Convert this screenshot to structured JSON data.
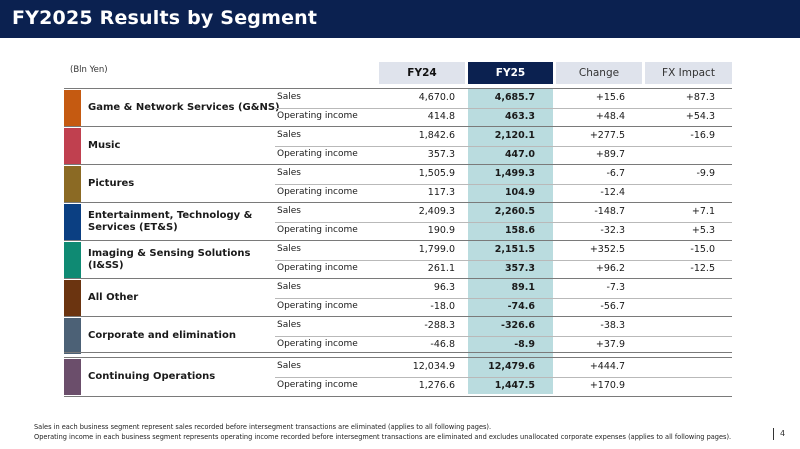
{
  "title": "FY2025 Results by Segment",
  "unit": "(Bln Yen)",
  "columns": {
    "fy24": "FY24",
    "fy25": "FY25",
    "change": "Change",
    "fx": "FX Impact"
  },
  "colors": {
    "header_bg": "#0b2150",
    "fy25_band": "#badcdf",
    "gns": "#c55a11",
    "music": "#c0404f",
    "pictures": "#8b6a24",
    "ets": "#0b3f82",
    "iss": "#0f8a73",
    "other": "#6b3410",
    "corp": "#4c6176",
    "cont": "#6b4e6b"
  },
  "segments": [
    {
      "name": "Game & Network Services (G&NS)",
      "sales": {
        "label": "Sales",
        "fy24": "4,670.0",
        "fy25": "4,685.7",
        "change": "+15.6",
        "fx": "+87.3"
      },
      "oi": {
        "label": "Operating income",
        "fy24": "414.8",
        "fy25": "463.3",
        "change": "+48.4",
        "fx": "+54.3"
      }
    },
    {
      "name": "Music",
      "sales": {
        "label": "Sales",
        "fy24": "1,842.6",
        "fy25": "2,120.1",
        "change": "+277.5",
        "fx": "-16.9"
      },
      "oi": {
        "label": "Operating income",
        "fy24": "357.3",
        "fy25": "447.0",
        "change": "+89.7",
        "fx": ""
      }
    },
    {
      "name": "Pictures",
      "sales": {
        "label": "Sales",
        "fy24": "1,505.9",
        "fy25": "1,499.3",
        "change": "-6.7",
        "fx": "-9.9"
      },
      "oi": {
        "label": "Operating income",
        "fy24": "117.3",
        "fy25": "104.9",
        "change": "-12.4",
        "fx": ""
      }
    },
    {
      "name": "Entertainment, Technology & Services (ET&S)",
      "sales": {
        "label": "Sales",
        "fy24": "2,409.3",
        "fy25": "2,260.5",
        "change": "-148.7",
        "fx": "+7.1"
      },
      "oi": {
        "label": "Operating income",
        "fy24": "190.9",
        "fy25": "158.6",
        "change": "-32.3",
        "fx": "+5.3"
      }
    },
    {
      "name": "Imaging & Sensing Solutions (I&SS)",
      "sales": {
        "label": "Sales",
        "fy24": "1,799.0",
        "fy25": "2,151.5",
        "change": "+352.5",
        "fx": "-15.0"
      },
      "oi": {
        "label": "Operating income",
        "fy24": "261.1",
        "fy25": "357.3",
        "change": "+96.2",
        "fx": "-12.5"
      }
    },
    {
      "name": "All Other",
      "sales": {
        "label": "Sales",
        "fy24": "96.3",
        "fy25": "89.1",
        "change": "-7.3",
        "fx": ""
      },
      "oi": {
        "label": "Operating income",
        "fy24": "-18.0",
        "fy25": "-74.6",
        "change": "-56.7",
        "fx": ""
      }
    },
    {
      "name": "Corporate and elimination",
      "sales": {
        "label": "Sales",
        "fy24": "-288.3",
        "fy25": "-326.6",
        "change": "-38.3",
        "fx": ""
      },
      "oi": {
        "label": "Operating income",
        "fy24": "-46.8",
        "fy25": "-8.9",
        "change": "+37.9",
        "fx": ""
      }
    },
    {
      "name": "Continuing Operations",
      "sales": {
        "label": "Sales",
        "fy24": "12,034.9",
        "fy25": "12,479.6",
        "change": "+444.7",
        "fx": ""
      },
      "oi": {
        "label": "Operating income",
        "fy24": "1,276.6",
        "fy25": "1,447.5",
        "change": "+170.9",
        "fx": ""
      }
    }
  ],
  "footnotes": [
    "Sales in each business segment represent sales recorded before intersegment transactions are eliminated (applies to all following pages).",
    "Operating income in each business segment represents operating income recorded before intersegment transactions are eliminated and excludes unallocated corporate expenses (applies to all following pages)."
  ],
  "page_number": "4"
}
